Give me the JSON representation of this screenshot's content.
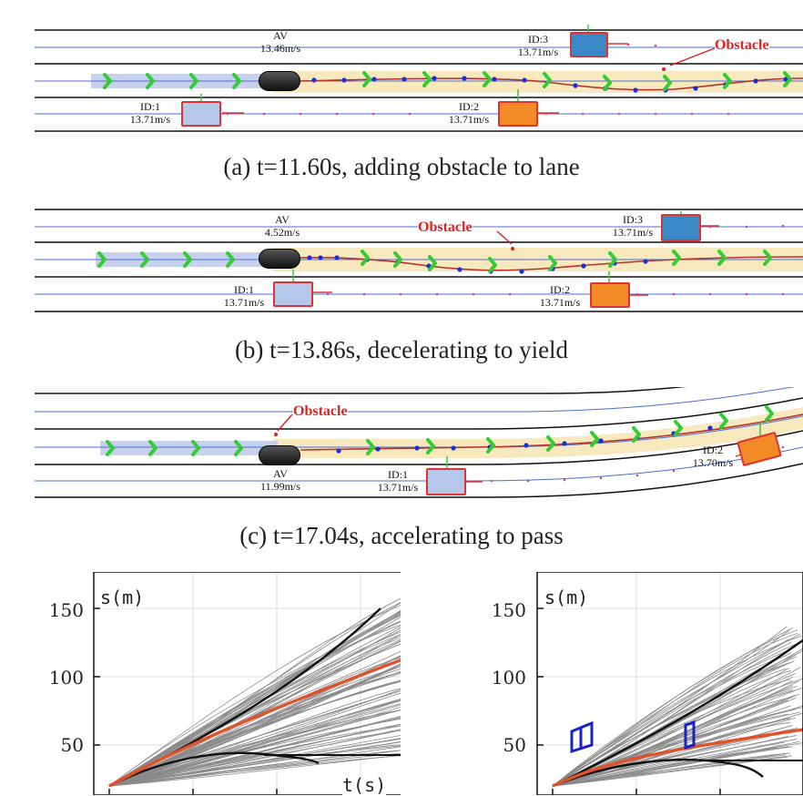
{
  "scenes": [
    {
      "id": "a",
      "caption": "(a) t=11.60s, adding obstacle to lane",
      "obstacle_label": "Obstacle",
      "vehicles": [
        {
          "id": "AV",
          "speed": "13.46m/s"
        },
        {
          "id": "ID:3",
          "speed": "13.71m/s"
        },
        {
          "id": "ID:1",
          "speed": "13.71m/s"
        },
        {
          "id": "ID:2",
          "speed": "13.71m/s"
        }
      ]
    },
    {
      "id": "b",
      "caption": "(b) t=13.86s, decelerating to yield",
      "obstacle_label": "Obstacle",
      "vehicles": [
        {
          "id": "AV",
          "speed": "4.52m/s"
        },
        {
          "id": "ID:3",
          "speed": "13.71m/s"
        },
        {
          "id": "ID:1",
          "speed": "13.71m/s"
        },
        {
          "id": "ID:2",
          "speed": "13.71m/s"
        }
      ]
    },
    {
      "id": "c",
      "caption": "(c) t=17.04s, accelerating to pass",
      "obstacle_label": "Obstacle",
      "vehicles": [
        {
          "id": "AV",
          "speed": "11.99m/s"
        },
        {
          "id": "ID:1",
          "speed": "13.71m/s"
        },
        {
          "id": "ID:2",
          "speed": "13.70m/s"
        }
      ]
    }
  ],
  "plots": [
    {
      "ylabel": "s(m)",
      "xlabel": "t(s)",
      "yticks": [
        "150",
        "100",
        "50"
      ]
    },
    {
      "ylabel": "s(m)",
      "yticks": [
        "150",
        "100",
        "50"
      ]
    }
  ],
  "colors": {
    "lane_line": "#111111",
    "centerline": "#4a6fd0",
    "path_band": "#f3dea2",
    "planned_path": "#b5342a",
    "waypoint_arrow": "#33cc33",
    "waypoint_dot": "#1a2fd8",
    "obstacle": "#d22222",
    "traj_gray": "#888888",
    "traj_best": "#e0522a",
    "st_obstacle": "#1a22c0"
  }
}
